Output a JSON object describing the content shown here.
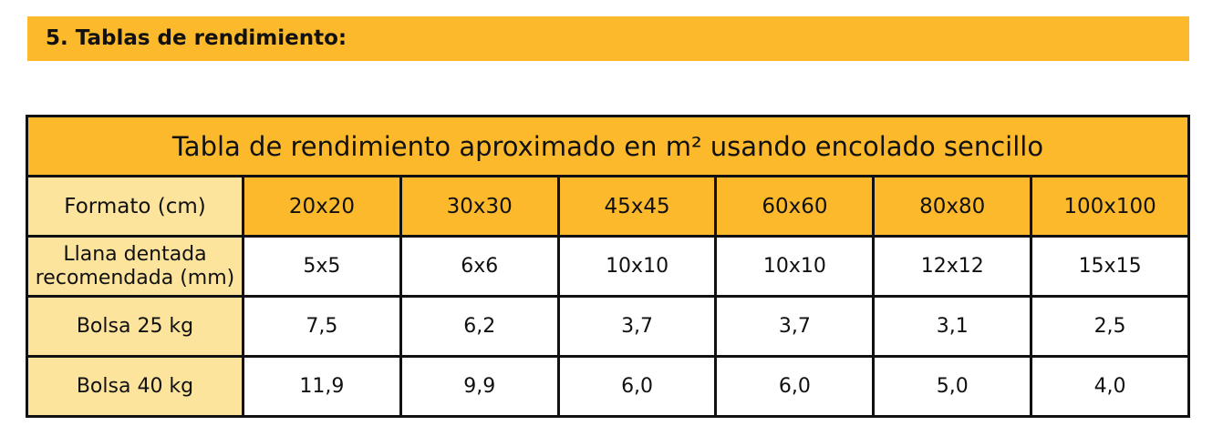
{
  "header": {
    "title": "5. Tablas de rendimiento:"
  },
  "table": {
    "title": "Tabla de rendimiento aproximado en m² usando encolado sencillo",
    "header": [
      "Formato (cm)",
      "20x20",
      "30x30",
      "45x45",
      "60x60",
      "80x80",
      "100x100"
    ],
    "rows": [
      [
        "Llana dentada recomendada (mm)",
        "5x5",
        "6x6",
        "10x10",
        "10x10",
        "12x12",
        "15x15"
      ],
      [
        "Bolsa 25 kg",
        "7,5",
        "6,2",
        "3,7",
        "3,7",
        "3,1",
        "2,5"
      ],
      [
        "Bolsa 40 kg",
        "11,9",
        "9,9",
        "6,0",
        "6,0",
        "5,0",
        "4,0"
      ]
    ]
  }
}
